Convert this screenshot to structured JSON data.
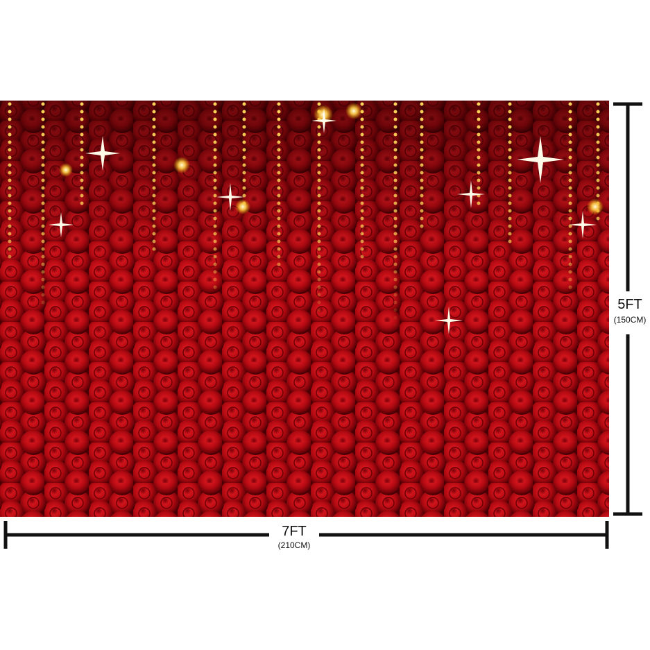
{
  "dimensions": {
    "width": {
      "label": "7FT",
      "metric": "(210CM)"
    },
    "height": {
      "label": "5FT",
      "metric": "(150CM)"
    }
  }
}
